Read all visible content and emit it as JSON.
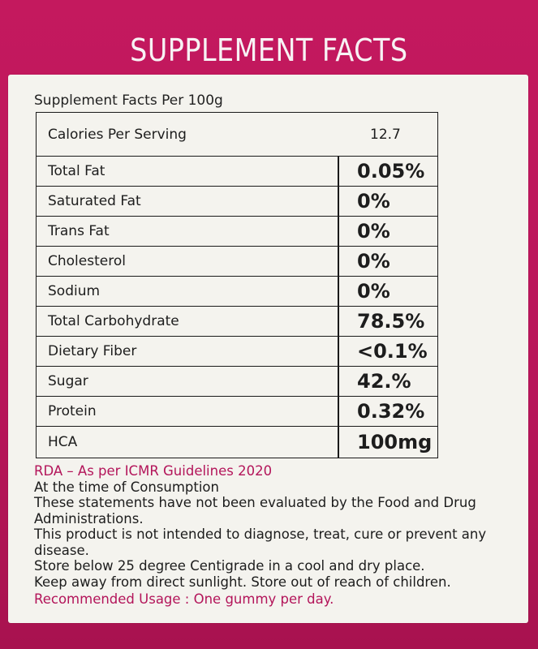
{
  "title": "SUPPLEMENT FACTS",
  "per_line": "Supplement Facts Per 100g",
  "calories": {
    "label": "Calories Per Serving",
    "value": "12.7"
  },
  "nutrients": [
    {
      "label": "Total Fat",
      "value": "0.05%"
    },
    {
      "label": "Saturated Fat",
      "value": "0%"
    },
    {
      "label": "Trans Fat",
      "value": "0%"
    },
    {
      "label": "Cholesterol",
      "value": "0%"
    },
    {
      "label": "Sodium",
      "value": "0%"
    },
    {
      "label": "Total Carbohydrate",
      "value": "78.5%"
    },
    {
      "label": "Dietary Fiber",
      "value": "<0.1%"
    },
    {
      "label": "Sugar",
      "value": "42.%"
    },
    {
      "label": "Protein",
      "value": "0.32%"
    },
    {
      "label": "HCA",
      "value": "100mg"
    }
  ],
  "notes": {
    "rda": "RDA – As per ICMR Guidelines 2020",
    "consumption": "At the time of Consumption",
    "fda_line1": "These statements have not been evaluated by the Food and Drug",
    "fda_line2": "Administrations.",
    "diagnose_line1": "This product is not intended to diagnose, treat, cure or prevent any",
    "diagnose_line2": "disease.",
    "store_line1": "Store below 25 degree Centigrade in a cool and dry place.",
    "store_line2": "Keep away from direct sunlight. Store out of reach of children.",
    "usage": "Recommended Usage : One gummy per day."
  },
  "colors": {
    "box": "#c2185b",
    "panel": "#f4f3ee",
    "accent_text": "#b3155a"
  }
}
